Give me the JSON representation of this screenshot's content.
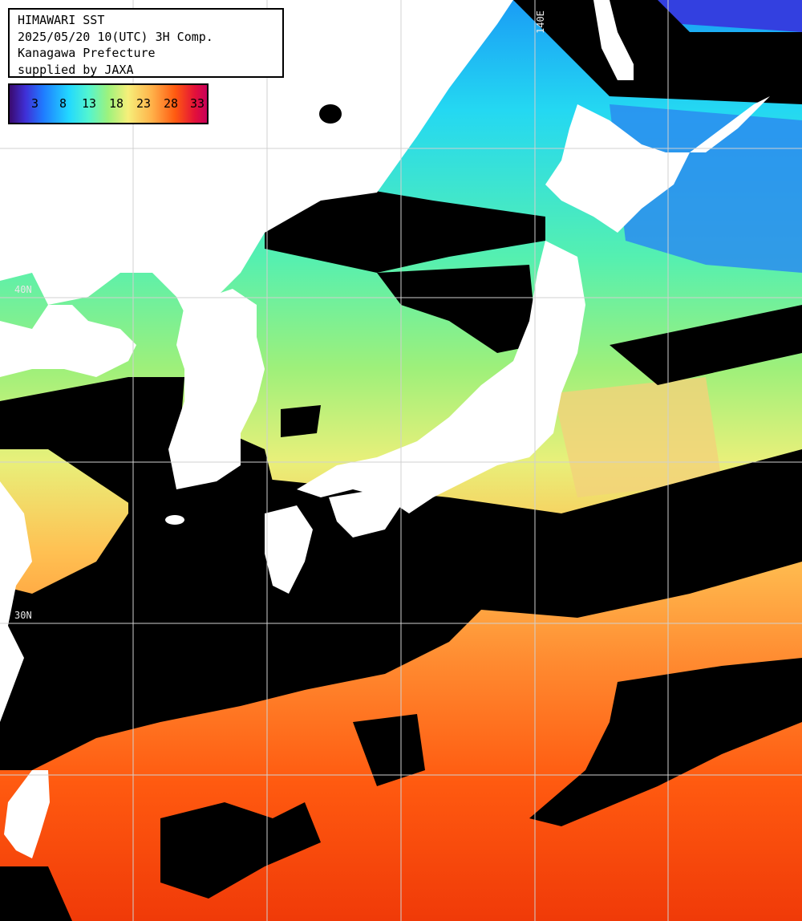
{
  "header": {
    "line1": "HIMAWARI SST",
    "line2": "2025/05/20 10(UTC) 3H Comp.",
    "line3": "Kanagawa Prefecture",
    "line4": "supplied by JAXA"
  },
  "scale": {
    "labels": [
      "3",
      "8",
      "13",
      "18",
      "23",
      "28",
      "33"
    ]
  },
  "grid": {
    "lon_label": "140E",
    "lat_label_1": "40N",
    "lat_label_2": "30N"
  },
  "colors": {
    "land": "#ffffff",
    "cloud": "#000000",
    "grid": "#d0d0d0"
  }
}
